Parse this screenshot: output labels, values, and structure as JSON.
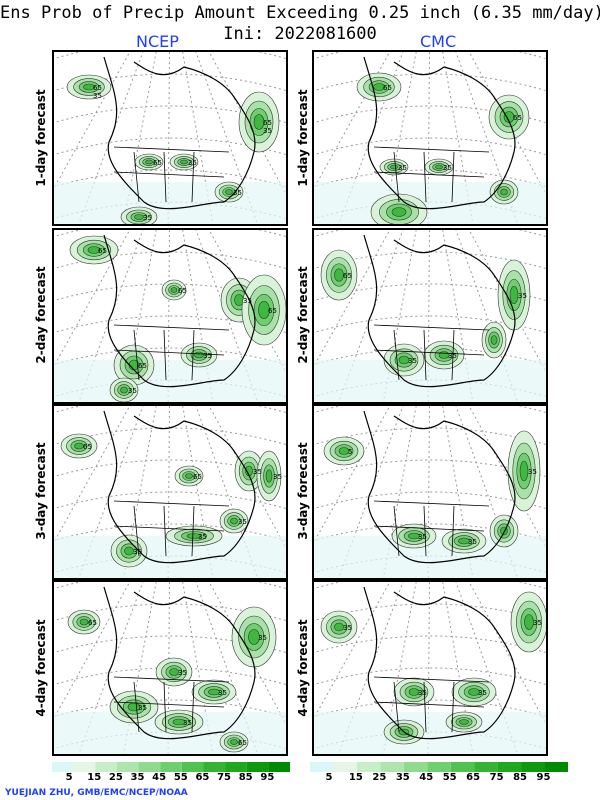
{
  "header": {
    "title_line1": "Ens Prob of Precip Amount Exceeding 0.25 inch (6.35 mm/day)",
    "title_line2": "Ini: 2022081600"
  },
  "columns": [
    {
      "label": "NCEP"
    },
    {
      "label": "CMC"
    }
  ],
  "rows": [
    {
      "label": "1-day forecast"
    },
    {
      "label": "2-day forecast"
    },
    {
      "label": "3-day forecast"
    },
    {
      "label": "4-day forecast"
    }
  ],
  "contour_labels": {
    "ncep_1": [
      "65",
      "65",
      "65",
      "35",
      "35",
      "35",
      "35",
      "35"
    ],
    "cmc_1": [
      "65",
      "65",
      "35",
      "35"
    ],
    "ncep_2": [
      "65",
      "65",
      "35",
      "65",
      "65",
      "35",
      "35"
    ],
    "cmc_2": [
      "65",
      "35",
      "35",
      "35"
    ],
    "ncep_3": [
      "65",
      "65",
      "35",
      "35",
      "35",
      "35",
      "35"
    ],
    "cmc_3": [
      "5",
      "35",
      "35",
      "35"
    ],
    "ncep_4": [
      "35",
      "65",
      "35",
      "35",
      "35",
      "35",
      "65"
    ],
    "cmc_4": [
      "35",
      "35",
      "35",
      "35"
    ]
  },
  "colorbar": {
    "labels": [
      "5",
      "15",
      "25",
      "35",
      "45",
      "55",
      "65",
      "75",
      "85",
      "95"
    ],
    "colors": [
      "#d9f7f7",
      "#e6f5e6",
      "#c8eec8",
      "#aee5ae",
      "#90da90",
      "#6fcf6f",
      "#4fc24f",
      "#33b533",
      "#1ea81e",
      "#0d990d",
      "#008a00"
    ]
  },
  "credit": "YUEJIAN ZHU, GMB/EMC/NCEP/NOAA"
}
